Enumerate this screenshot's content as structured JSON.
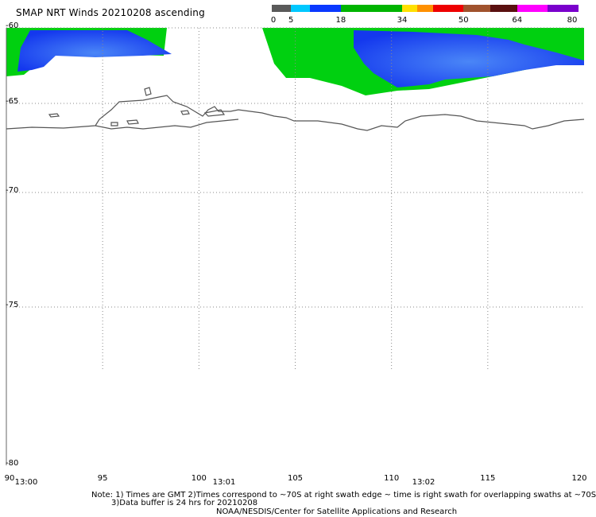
{
  "title": "SMAP NRT Winds 20210208 ascending",
  "colorbar": {
    "segments": [
      {
        "from": 0,
        "to": 5,
        "color": "#5a5a5a"
      },
      {
        "from": 5,
        "to": 10,
        "color": "#00c8ff"
      },
      {
        "from": 10,
        "to": 18,
        "color": "#0a38ff"
      },
      {
        "from": 18,
        "to": 34,
        "color": "#00b400"
      },
      {
        "from": 34,
        "to": 38,
        "color": "#ffe000"
      },
      {
        "from": 38,
        "to": 42,
        "color": "#ff9000"
      },
      {
        "from": 42,
        "to": 50,
        "color": "#ee0000"
      },
      {
        "from": 50,
        "to": 57,
        "color": "#a0522d"
      },
      {
        "from": 57,
        "to": 64,
        "color": "#5a1010"
      },
      {
        "from": 64,
        "to": 72,
        "color": "#ff00ff"
      },
      {
        "from": 72,
        "to": 80,
        "color": "#7a00cc"
      }
    ],
    "labels": [
      "0",
      "5",
      "18",
      "34",
      "50",
      "64",
      "80"
    ]
  },
  "map": {
    "lat_labels": [
      "-60",
      "-65",
      "-70",
      "-75",
      "-80"
    ],
    "lon_labels": [
      "90",
      "95",
      "100",
      "105",
      "110",
      "115",
      "120"
    ],
    "time_labels": [
      "13:00",
      "13:01",
      "13:02"
    ],
    "lon_range": [
      90,
      120
    ],
    "lat_range": [
      -60,
      -80
    ]
  },
  "note": {
    "line1": "Note: 1) Times are GMT 2)Times correspond to ~70S at right swath edge ~ time is right swath for overlapping swaths at ~70S",
    "line2": "3)Data buffer is 24 hrs for 20210208",
    "line3": "NOAA/NESDIS/Center for Satellite Applications and Research"
  },
  "colors": {
    "coastline": "#555555",
    "grid": "#999999",
    "wind_green": "#00d010",
    "wind_blue": "#1848f0",
    "wind_light_blue": "#3f78f5"
  }
}
